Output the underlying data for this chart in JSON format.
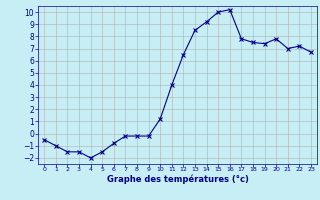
{
  "x": [
    0,
    1,
    2,
    3,
    4,
    5,
    6,
    7,
    8,
    9,
    10,
    11,
    12,
    13,
    14,
    15,
    16,
    17,
    18,
    19,
    20,
    21,
    22,
    23
  ],
  "y": [
    -0.5,
    -1.0,
    -1.5,
    -1.5,
    -2.0,
    -1.5,
    -0.8,
    -0.2,
    -0.2,
    -0.2,
    1.2,
    4.0,
    6.5,
    8.5,
    9.2,
    10.0,
    10.2,
    7.8,
    7.5,
    7.4,
    7.8,
    7.0,
    7.2,
    6.7
  ],
  "xlabel": "Graphe des températures (°c)",
  "ylim": [
    -2.5,
    10.5
  ],
  "xlim": [
    -0.5,
    23.5
  ],
  "yticks": [
    -2,
    -1,
    0,
    1,
    2,
    3,
    4,
    5,
    6,
    7,
    8,
    9,
    10
  ],
  "xticks": [
    0,
    1,
    2,
    3,
    4,
    5,
    6,
    7,
    8,
    9,
    10,
    11,
    12,
    13,
    14,
    15,
    16,
    17,
    18,
    19,
    20,
    21,
    22,
    23
  ],
  "line_color": "#00008b",
  "marker_color": "#00008b",
  "bg_color": "#c8eef5",
  "grid_color": "#b0b0b0",
  "tick_color": "#00008b"
}
